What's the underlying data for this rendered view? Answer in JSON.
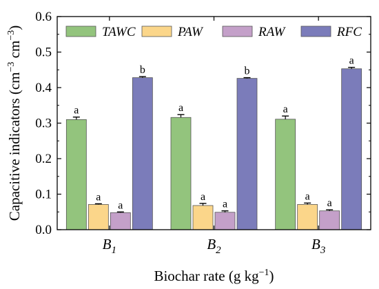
{
  "chart_data": {
    "type": "bar",
    "categories": [
      "B",
      "B",
      "B"
    ],
    "category_subscripts": [
      "1",
      "2",
      "3"
    ],
    "xlabel": "Biochar rate (g kg",
    "xlabel_exp": "−1",
    "xlabel_end": ")",
    "ylabel": "Capacitive indicators (cm",
    "ylabel_exp1": "−3",
    "ylabel_mid": " cm",
    "ylabel_exp2": "−3",
    "ylabel_end": ")",
    "ylim": [
      0,
      0.6
    ],
    "yticks": [
      0.0,
      0.1,
      0.2,
      0.3,
      0.4,
      0.5,
      0.6
    ],
    "ytick_labels": [
      "0.0",
      "0.1",
      "0.2",
      "0.3",
      "0.4",
      "0.5",
      "0.6"
    ],
    "legend_position": "top",
    "series": [
      {
        "name": "TAWC",
        "color": "#93c47d",
        "values": [
          0.31,
          0.316,
          0.311
        ],
        "errors": [
          0.007,
          0.008,
          0.009
        ],
        "labels": [
          "a",
          "a",
          "a"
        ]
      },
      {
        "name": "PAW",
        "color": "#fbd68a",
        "values": [
          0.071,
          0.068,
          0.071
        ],
        "errors": [
          0.002,
          0.006,
          0.004
        ],
        "labels": [
          "a",
          "a",
          "a"
        ]
      },
      {
        "name": "RAW",
        "color": "#c4a0c9",
        "values": [
          0.048,
          0.049,
          0.053
        ],
        "errors": [
          0.002,
          0.004,
          0.003
        ],
        "labels": [
          "a",
          "a",
          "a"
        ]
      },
      {
        "name": "RFC",
        "color": "#7b7cba",
        "values": [
          0.428,
          0.426,
          0.453
        ],
        "errors": [
          0.003,
          0.002,
          0.004
        ],
        "labels": [
          "b",
          "b",
          "a"
        ]
      }
    ]
  }
}
